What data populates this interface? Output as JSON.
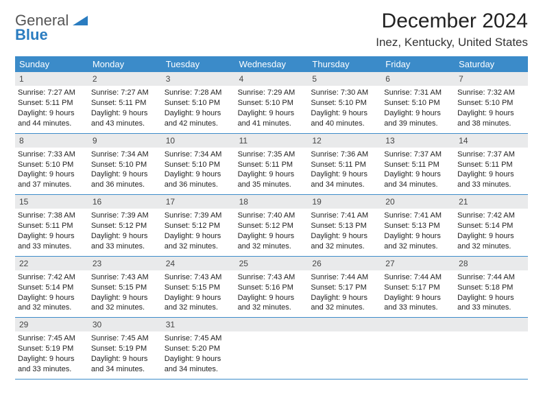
{
  "logo": {
    "text_top": "General",
    "text_bottom": "Blue"
  },
  "title": "December 2024",
  "location": "Inez, Kentucky, United States",
  "colors": {
    "header_bg": "#3b8bc9",
    "header_text": "#ffffff",
    "daynum_bg": "#e9eaeb",
    "border": "#3b8bc9",
    "logo_gray": "#555555",
    "logo_blue": "#2a7cc0"
  },
  "weekdays": [
    "Sunday",
    "Monday",
    "Tuesday",
    "Wednesday",
    "Thursday",
    "Friday",
    "Saturday"
  ],
  "weeks": [
    [
      {
        "n": "1",
        "sr": "Sunrise: 7:27 AM",
        "ss": "Sunset: 5:11 PM",
        "d1": "Daylight: 9 hours",
        "d2": "and 44 minutes."
      },
      {
        "n": "2",
        "sr": "Sunrise: 7:27 AM",
        "ss": "Sunset: 5:11 PM",
        "d1": "Daylight: 9 hours",
        "d2": "and 43 minutes."
      },
      {
        "n": "3",
        "sr": "Sunrise: 7:28 AM",
        "ss": "Sunset: 5:10 PM",
        "d1": "Daylight: 9 hours",
        "d2": "and 42 minutes."
      },
      {
        "n": "4",
        "sr": "Sunrise: 7:29 AM",
        "ss": "Sunset: 5:10 PM",
        "d1": "Daylight: 9 hours",
        "d2": "and 41 minutes."
      },
      {
        "n": "5",
        "sr": "Sunrise: 7:30 AM",
        "ss": "Sunset: 5:10 PM",
        "d1": "Daylight: 9 hours",
        "d2": "and 40 minutes."
      },
      {
        "n": "6",
        "sr": "Sunrise: 7:31 AM",
        "ss": "Sunset: 5:10 PM",
        "d1": "Daylight: 9 hours",
        "d2": "and 39 minutes."
      },
      {
        "n": "7",
        "sr": "Sunrise: 7:32 AM",
        "ss": "Sunset: 5:10 PM",
        "d1": "Daylight: 9 hours",
        "d2": "and 38 minutes."
      }
    ],
    [
      {
        "n": "8",
        "sr": "Sunrise: 7:33 AM",
        "ss": "Sunset: 5:10 PM",
        "d1": "Daylight: 9 hours",
        "d2": "and 37 minutes."
      },
      {
        "n": "9",
        "sr": "Sunrise: 7:34 AM",
        "ss": "Sunset: 5:10 PM",
        "d1": "Daylight: 9 hours",
        "d2": "and 36 minutes."
      },
      {
        "n": "10",
        "sr": "Sunrise: 7:34 AM",
        "ss": "Sunset: 5:10 PM",
        "d1": "Daylight: 9 hours",
        "d2": "and 36 minutes."
      },
      {
        "n": "11",
        "sr": "Sunrise: 7:35 AM",
        "ss": "Sunset: 5:11 PM",
        "d1": "Daylight: 9 hours",
        "d2": "and 35 minutes."
      },
      {
        "n": "12",
        "sr": "Sunrise: 7:36 AM",
        "ss": "Sunset: 5:11 PM",
        "d1": "Daylight: 9 hours",
        "d2": "and 34 minutes."
      },
      {
        "n": "13",
        "sr": "Sunrise: 7:37 AM",
        "ss": "Sunset: 5:11 PM",
        "d1": "Daylight: 9 hours",
        "d2": "and 34 minutes."
      },
      {
        "n": "14",
        "sr": "Sunrise: 7:37 AM",
        "ss": "Sunset: 5:11 PM",
        "d1": "Daylight: 9 hours",
        "d2": "and 33 minutes."
      }
    ],
    [
      {
        "n": "15",
        "sr": "Sunrise: 7:38 AM",
        "ss": "Sunset: 5:11 PM",
        "d1": "Daylight: 9 hours",
        "d2": "and 33 minutes."
      },
      {
        "n": "16",
        "sr": "Sunrise: 7:39 AM",
        "ss": "Sunset: 5:12 PM",
        "d1": "Daylight: 9 hours",
        "d2": "and 33 minutes."
      },
      {
        "n": "17",
        "sr": "Sunrise: 7:39 AM",
        "ss": "Sunset: 5:12 PM",
        "d1": "Daylight: 9 hours",
        "d2": "and 32 minutes."
      },
      {
        "n": "18",
        "sr": "Sunrise: 7:40 AM",
        "ss": "Sunset: 5:12 PM",
        "d1": "Daylight: 9 hours",
        "d2": "and 32 minutes."
      },
      {
        "n": "19",
        "sr": "Sunrise: 7:41 AM",
        "ss": "Sunset: 5:13 PM",
        "d1": "Daylight: 9 hours",
        "d2": "and 32 minutes."
      },
      {
        "n": "20",
        "sr": "Sunrise: 7:41 AM",
        "ss": "Sunset: 5:13 PM",
        "d1": "Daylight: 9 hours",
        "d2": "and 32 minutes."
      },
      {
        "n": "21",
        "sr": "Sunrise: 7:42 AM",
        "ss": "Sunset: 5:14 PM",
        "d1": "Daylight: 9 hours",
        "d2": "and 32 minutes."
      }
    ],
    [
      {
        "n": "22",
        "sr": "Sunrise: 7:42 AM",
        "ss": "Sunset: 5:14 PM",
        "d1": "Daylight: 9 hours",
        "d2": "and 32 minutes."
      },
      {
        "n": "23",
        "sr": "Sunrise: 7:43 AM",
        "ss": "Sunset: 5:15 PM",
        "d1": "Daylight: 9 hours",
        "d2": "and 32 minutes."
      },
      {
        "n": "24",
        "sr": "Sunrise: 7:43 AM",
        "ss": "Sunset: 5:15 PM",
        "d1": "Daylight: 9 hours",
        "d2": "and 32 minutes."
      },
      {
        "n": "25",
        "sr": "Sunrise: 7:43 AM",
        "ss": "Sunset: 5:16 PM",
        "d1": "Daylight: 9 hours",
        "d2": "and 32 minutes."
      },
      {
        "n": "26",
        "sr": "Sunrise: 7:44 AM",
        "ss": "Sunset: 5:17 PM",
        "d1": "Daylight: 9 hours",
        "d2": "and 32 minutes."
      },
      {
        "n": "27",
        "sr": "Sunrise: 7:44 AM",
        "ss": "Sunset: 5:17 PM",
        "d1": "Daylight: 9 hours",
        "d2": "and 33 minutes."
      },
      {
        "n": "28",
        "sr": "Sunrise: 7:44 AM",
        "ss": "Sunset: 5:18 PM",
        "d1": "Daylight: 9 hours",
        "d2": "and 33 minutes."
      }
    ],
    [
      {
        "n": "29",
        "sr": "Sunrise: 7:45 AM",
        "ss": "Sunset: 5:19 PM",
        "d1": "Daylight: 9 hours",
        "d2": "and 33 minutes."
      },
      {
        "n": "30",
        "sr": "Sunrise: 7:45 AM",
        "ss": "Sunset: 5:19 PM",
        "d1": "Daylight: 9 hours",
        "d2": "and 34 minutes."
      },
      {
        "n": "31",
        "sr": "Sunrise: 7:45 AM",
        "ss": "Sunset: 5:20 PM",
        "d1": "Daylight: 9 hours",
        "d2": "and 34 minutes."
      },
      {
        "empty": true
      },
      {
        "empty": true
      },
      {
        "empty": true
      },
      {
        "empty": true
      }
    ]
  ]
}
